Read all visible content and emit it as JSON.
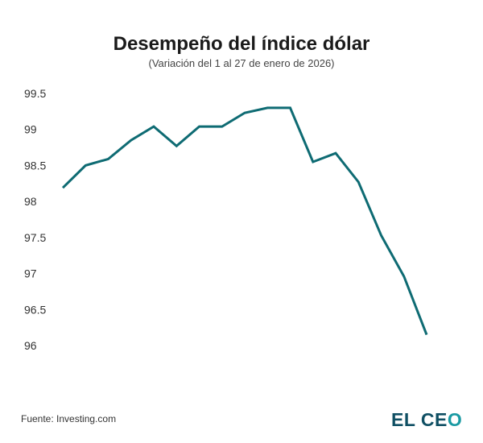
{
  "chart_data": {
    "type": "line",
    "title": "Desempeño del índice dólar",
    "subtitle": "(Variación del 1 al 27 de enero de 2026)",
    "xlabel": "",
    "ylabel": "",
    "ylim": [
      96,
      99.5
    ],
    "yticks": [
      "99.5",
      "99",
      "98.5",
      "98",
      "97.5",
      "97",
      "96.5",
      "96"
    ],
    "ytick_values": [
      99.5,
      99,
      98.5,
      98,
      97.5,
      97,
      96.5,
      96
    ],
    "grid": false,
    "series": [
      {
        "name": "Índice dólar",
        "color": "#0e6b73",
        "values": [
          98.19,
          98.5,
          98.59,
          98.85,
          99.04,
          98.77,
          99.04,
          99.04,
          99.23,
          99.3,
          99.3,
          98.55,
          98.67,
          98.27,
          97.53,
          96.96,
          96.15
        ]
      }
    ]
  },
  "footer": {
    "source": "Fuente: Investing.com",
    "logo_main": "EL CE",
    "logo_accent": "O"
  },
  "colors": {
    "line": "#0e6b73",
    "logo_dark": "#0f4f63",
    "logo_accent": "#1a9aa3"
  }
}
